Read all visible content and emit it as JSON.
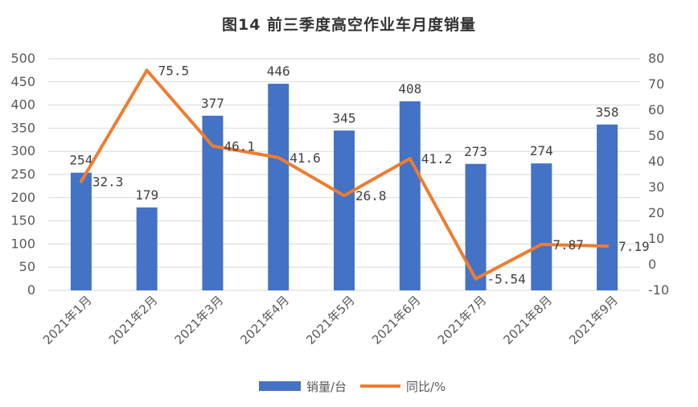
{
  "chart_data": {
    "type": "bar",
    "title": "图14   前三季度高空作业车月度销量",
    "categories": [
      "2021年1月",
      "2021年2月",
      "2021年3月",
      "2021年4月",
      "2021年5月",
      "2021年6月",
      "2021年7月",
      "2021年8月",
      "2021年9月"
    ],
    "series": [
      {
        "name": "销量/台",
        "type": "bar",
        "axis": "left",
        "color": "#4472C4",
        "values": [
          254,
          179,
          377,
          446,
          345,
          408,
          273,
          274,
          358
        ],
        "labels": [
          "254",
          "179",
          "377",
          "446",
          "345",
          "408",
          "273",
          "274",
          "358"
        ]
      },
      {
        "name": "同比/%",
        "type": "line",
        "axis": "right",
        "color": "#ED7D31",
        "values": [
          32.3,
          75.5,
          46.1,
          41.6,
          26.8,
          41.2,
          -5.54,
          7.87,
          7.19
        ],
        "labels": [
          "32.3",
          "75.5",
          "46.1",
          "41.6",
          "26.8",
          "41.2",
          "-5.54",
          "7.87",
          "7.19"
        ]
      }
    ],
    "y_left": {
      "min": 0,
      "max": 500,
      "step": 50,
      "ticks": [
        "0",
        "50",
        "100",
        "150",
        "200",
        "250",
        "300",
        "350",
        "400",
        "450",
        "500"
      ]
    },
    "y_right": {
      "min": -10,
      "max": 80,
      "step": 10,
      "ticks": [
        "-10",
        "0",
        "10",
        "20",
        "30",
        "40",
        "50",
        "60",
        "70",
        "80"
      ]
    },
    "grid": true,
    "legend": "bottom"
  }
}
